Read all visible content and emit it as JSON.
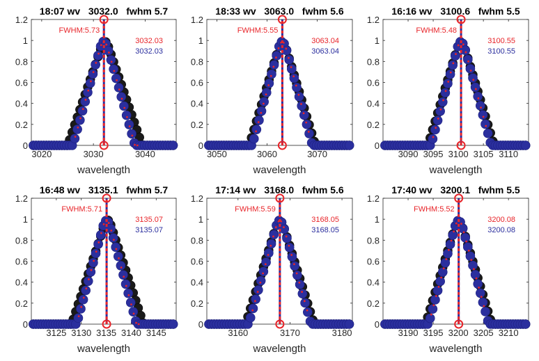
{
  "chart_data": [
    {
      "type": "scatter",
      "title": "18:07 wv   3032.0   fwhm 5.7",
      "xlabel": "wavelength",
      "xlim": [
        3018,
        3046
      ],
      "ylim": [
        0,
        1.2
      ],
      "xticks": [
        3020,
        3030,
        3040
      ],
      "yticks": [
        0,
        0.2,
        0.4,
        0.6,
        0.8,
        1,
        1.2
      ],
      "ytick_labels": [
        "0",
        "0.2",
        "0.4",
        "0.6",
        "0.8",
        "1",
        "1.2"
      ],
      "peak_x": 3032.03,
      "fwhm_label": "FWHM:5.73",
      "red_value": "3032.03",
      "blue_value": "3032.03",
      "red_halfwidth": 3.3,
      "red_offset": 0.2,
      "red_start": 3026.5,
      "red_end": 3038.8,
      "blue_halfwidth": 3.0,
      "blue_offset": 0.0,
      "colors": {
        "black": "#1a1a1a",
        "red": "#e8252a",
        "blue": "#2b2f9e",
        "line": "#e8252a"
      }
    },
    {
      "type": "scatter",
      "title": "18:33 wv   3063.0   fwhm 5.6",
      "xlabel": "wavelength",
      "xlim": [
        3048,
        3077
      ],
      "ylim": [
        0,
        1.2
      ],
      "xticks": [
        3050,
        3060,
        3070
      ],
      "yticks": [
        0,
        0.2,
        0.4,
        0.6,
        0.8,
        1,
        1.2
      ],
      "ytick_labels": [
        "0",
        "0.2",
        "0.4",
        "0.6",
        "0.8",
        "1",
        "1.2"
      ],
      "peak_x": 3063.04,
      "fwhm_label": "FWHM:5.55",
      "red_value": "3063.04",
      "blue_value": "3063.04",
      "red_halfwidth": 3.0,
      "red_offset": 0.0,
      "red_start": 3057.8,
      "red_end": 3068.5,
      "blue_halfwidth": 3.0,
      "blue_offset": 0.0,
      "colors": {
        "black": "#1a1a1a",
        "red": "#e8252a",
        "blue": "#2b2f9e",
        "line": "#e8252a"
      }
    },
    {
      "type": "scatter",
      "title": "16:16 wv   3100.6   fwhm 5.5",
      "xlabel": "wavelength",
      "xlim": [
        3085,
        3114
      ],
      "ylim": [
        0,
        1.2
      ],
      "xticks": [
        3090,
        3095,
        3100,
        3105,
        3110
      ],
      "yticks": [
        0,
        0.2,
        0.4,
        0.6,
        0.8,
        1,
        1.2
      ],
      "ytick_labels": [
        "0",
        "0.2",
        "0.4",
        "0.6",
        "0.8",
        "1",
        "1.2"
      ],
      "peak_x": 3100.55,
      "fwhm_label": "FWHM:5.48",
      "red_value": "3100.55",
      "blue_value": "3100.55",
      "red_halfwidth": 3.0,
      "red_offset": 0.0,
      "red_start": 3095.0,
      "red_end": 3105.8,
      "blue_halfwidth": 3.0,
      "blue_offset": 0.0,
      "colors": {
        "black": "#1a1a1a",
        "red": "#e8252a",
        "blue": "#2b2f9e",
        "line": "#e8252a"
      }
    },
    {
      "type": "scatter",
      "title": "16:48 wv   3135.1   fwhm 5.7",
      "xlabel": "wavelength",
      "xlim": [
        3120,
        3149
      ],
      "ylim": [
        0,
        1.2
      ],
      "xticks": [
        3125,
        3130,
        3135,
        3140,
        3145
      ],
      "yticks": [
        0,
        0.2,
        0.4,
        0.6,
        0.8,
        1,
        1.2
      ],
      "ytick_labels": [
        "0",
        "0.2",
        "0.4",
        "0.6",
        "0.8",
        "1",
        "1.2"
      ],
      "peak_x": 3135.07,
      "fwhm_label": "FWHM:5.71",
      "red_value": "3135.07",
      "blue_value": "3135.07",
      "red_halfwidth": 3.3,
      "red_offset": 0.2,
      "red_start": 3129.5,
      "red_end": 3141.8,
      "blue_halfwidth": 3.0,
      "blue_offset": 0.0,
      "colors": {
        "black": "#1a1a1a",
        "red": "#e8252a",
        "blue": "#2b2f9e",
        "line": "#e8252a"
      }
    },
    {
      "type": "scatter",
      "title": "17:14 wv   3168.0   fwhm 5.6",
      "xlabel": "wavelength",
      "xlim": [
        3154,
        3182
      ],
      "ylim": [
        0,
        1.2
      ],
      "xticks": [
        3160,
        3170,
        3180
      ],
      "yticks": [
        0,
        0.2,
        0.4,
        0.6,
        0.8,
        1,
        1.2
      ],
      "ytick_labels": [
        "0",
        "0.2",
        "0.4",
        "0.6",
        "0.8",
        "1",
        "1.2"
      ],
      "peak_x": 3168.05,
      "fwhm_label": "FWHM:5.59",
      "red_value": "3168.05",
      "blue_value": "3168.05",
      "red_halfwidth": 3.0,
      "red_offset": 0.0,
      "red_start": 3162.8,
      "red_end": 3173.5,
      "blue_halfwidth": 3.0,
      "blue_offset": 0.0,
      "colors": {
        "black": "#1a1a1a",
        "red": "#e8252a",
        "blue": "#2b2f9e",
        "line": "#e8252a"
      }
    },
    {
      "type": "scatter",
      "title": "17:40 wv   3200.1   fwhm 5.5",
      "xlabel": "wavelength",
      "xlim": [
        3185,
        3214
      ],
      "ylim": [
        0,
        1.2
      ],
      "xticks": [
        3190,
        3195,
        3200,
        3205,
        3210
      ],
      "yticks": [
        0,
        0.2,
        0.4,
        0.6,
        0.8,
        1,
        1.2
      ],
      "ytick_labels": [
        "0",
        "0.2",
        "0.4",
        "0.6",
        "0.8",
        "1",
        "1.2"
      ],
      "peak_x": 3200.08,
      "fwhm_label": "FWHM:5.52",
      "red_value": "3200.08",
      "blue_value": "3200.08",
      "red_halfwidth": 3.0,
      "red_offset": 0.0,
      "red_start": 3194.6,
      "red_end": 3205.3,
      "blue_halfwidth": 3.0,
      "blue_offset": 0.0,
      "colors": {
        "black": "#1a1a1a",
        "red": "#e8252a",
        "blue": "#2b2f9e",
        "line": "#e8252a"
      }
    }
  ]
}
